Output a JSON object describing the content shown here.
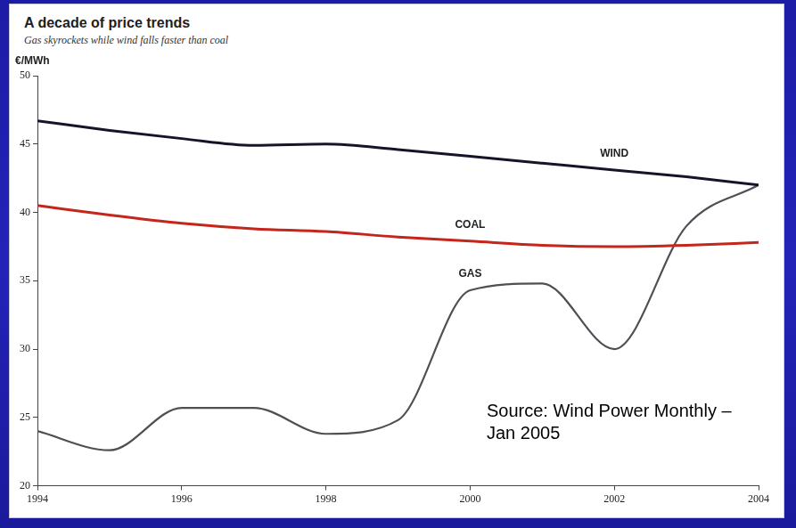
{
  "chart_data": {
    "type": "line",
    "title": "A decade of price trends",
    "subtitle": "Gas skyrockets while wind falls faster than coal",
    "y_label": "€/MWh",
    "annotations": [
      "Source: Wind Power Monthly – Jan 2005"
    ],
    "x": [
      1994,
      1995,
      1996,
      1997,
      1998,
      1999,
      2000,
      2001,
      2002,
      2003,
      2004
    ],
    "series": [
      {
        "name": "WIND",
        "color": "#15152a",
        "values": [
          46.7,
          46.0,
          45.4,
          44.9,
          45.0,
          44.6,
          44.1,
          43.6,
          43.1,
          42.6,
          42.0
        ]
      },
      {
        "name": "COAL",
        "color": "#c4261c",
        "values": [
          40.5,
          39.8,
          39.2,
          38.8,
          38.6,
          38.2,
          37.9,
          37.6,
          37.5,
          37.6,
          37.8
        ]
      },
      {
        "name": "GAS",
        "color": "#4f4f55",
        "values": [
          24.0,
          22.6,
          25.7,
          25.7,
          23.8,
          24.8,
          34.3,
          34.8,
          30.0,
          39.0,
          42.0
        ]
      }
    ],
    "xlim": [
      1994,
      2004
    ],
    "xticks": [
      1994,
      1996,
      1998,
      2000,
      2002,
      2004
    ],
    "ylim": [
      20,
      50
    ],
    "yticks": [
      20,
      25,
      30,
      35,
      40,
      45,
      50
    ],
    "grid": false
  }
}
